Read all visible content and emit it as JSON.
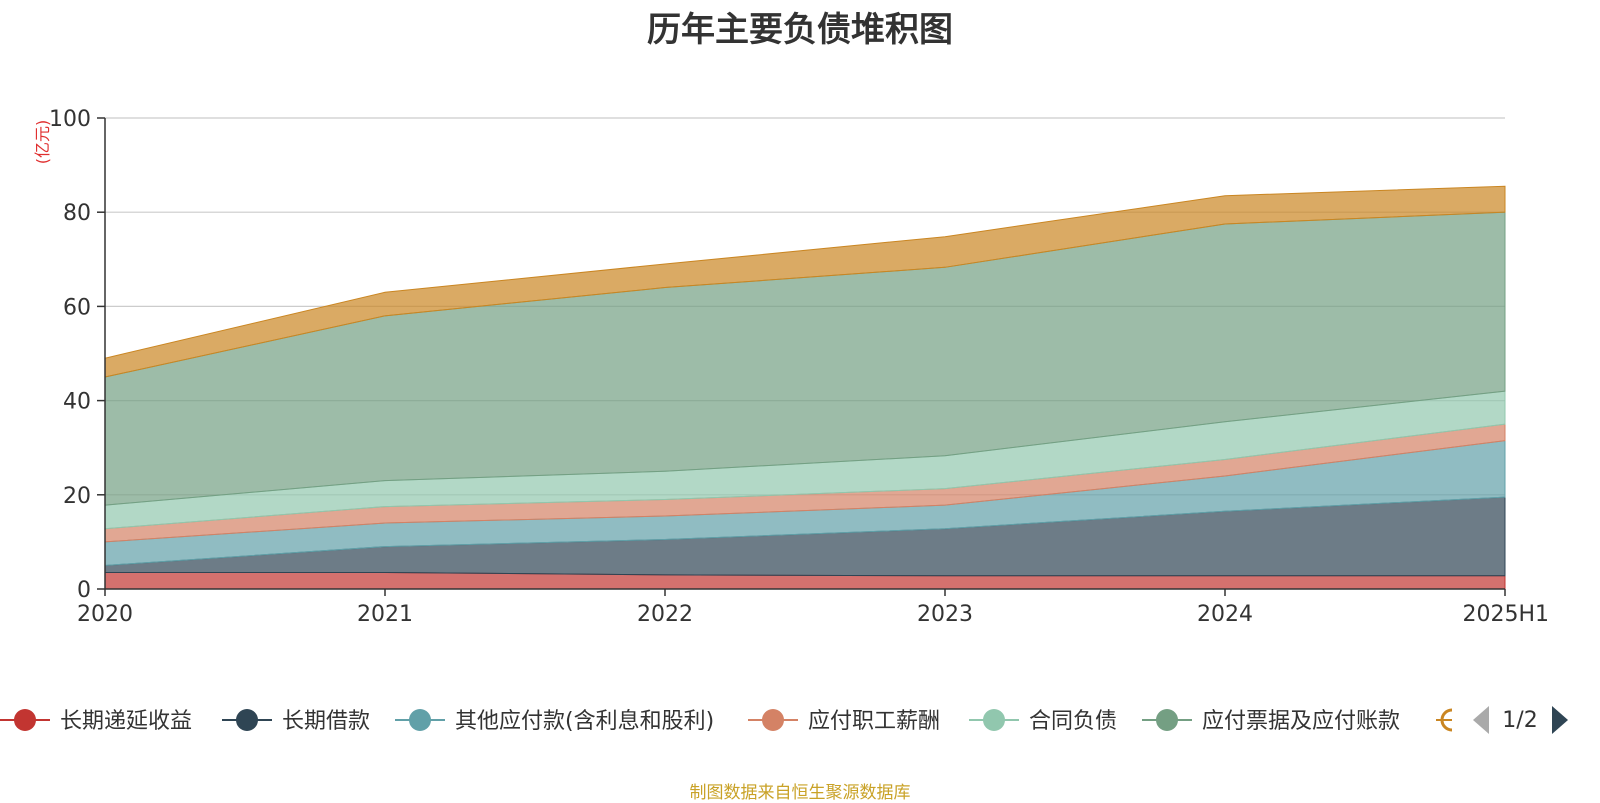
{
  "chart_data": {
    "type": "area",
    "stacked": true,
    "title": "历年主要负债堆积图",
    "ylabel": "(亿元)",
    "ylim": [
      0,
      100
    ],
    "yticks": [
      0,
      20,
      40,
      60,
      80,
      100
    ],
    "grid": true,
    "categories": [
      "2020",
      "2021",
      "2022",
      "2023",
      "2024",
      "2025H1"
    ],
    "series": [
      {
        "name": "长期递延收益",
        "color": "#c23531",
        "values": [
          3.5,
          3.5,
          3.0,
          2.8,
          2.8,
          2.8
        ]
      },
      {
        "name": "长期借款",
        "color": "#2f4554",
        "values": [
          1.5,
          5.5,
          7.5,
          10.0,
          13.7,
          16.7
        ]
      },
      {
        "name": "其他应付款(含利息和股利)",
        "color": "#61a0a8",
        "values": [
          5.0,
          5.0,
          5.0,
          5.0,
          7.5,
          12.0
        ]
      },
      {
        "name": "应付职工薪酬",
        "color": "#d48265",
        "values": [
          2.8,
          3.5,
          3.5,
          3.5,
          3.5,
          3.5
        ]
      },
      {
        "name": "合同负债",
        "color": "#91c7ae",
        "values": [
          5.0,
          5.5,
          6.0,
          7.0,
          8.0,
          7.0
        ]
      },
      {
        "name": "应付票据及应付账款",
        "color": "#749f83",
        "values": [
          27.2,
          35.0,
          39.0,
          40.0,
          42.0,
          38.0
        ]
      },
      {
        "name": "",
        "color": "#ca8622",
        "values": [
          4.0,
          5.0,
          5.0,
          6.5,
          6.0,
          5.5
        ]
      }
    ],
    "legend": {
      "position": "bottom",
      "page": "1/2"
    }
  },
  "source": "制图数据来自恒生聚源数据库"
}
